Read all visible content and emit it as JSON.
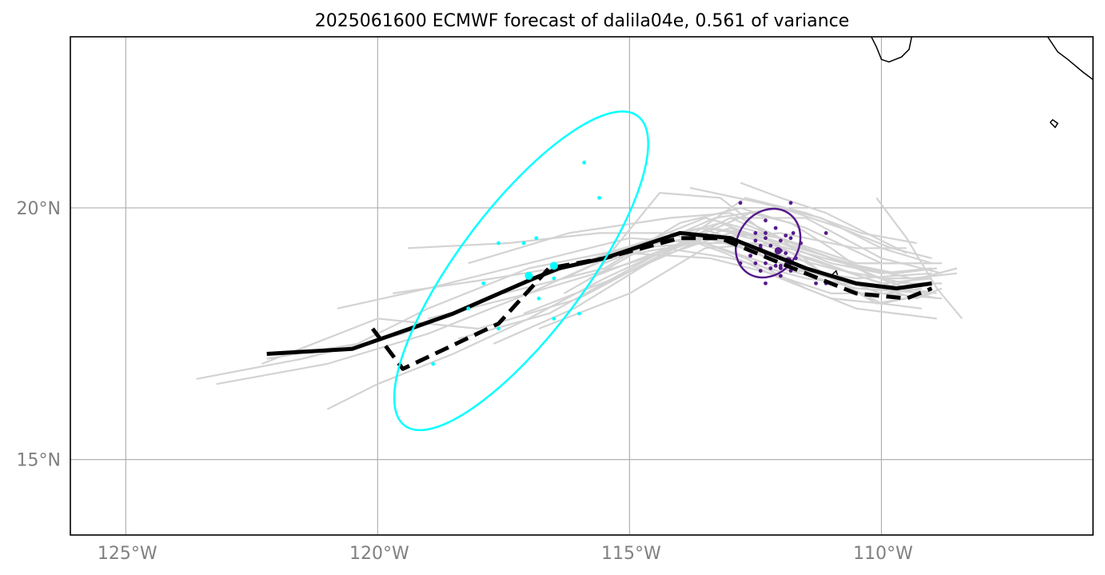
{
  "chart_data": {
    "type": "line",
    "title": "2025061600 ECMWF forecast of dalila04e, 0.561 of variance",
    "xlim": [
      -126.1,
      -105.8
    ],
    "ylim": [
      13.5,
      23.4
    ],
    "x_ticks": [
      {
        "value": -125,
        "label": "125°W"
      },
      {
        "value": -120,
        "label": "120°W"
      },
      {
        "value": -115,
        "label": "115°W"
      },
      {
        "value": -110,
        "label": "110°W"
      }
    ],
    "y_ticks": [
      {
        "value": 20,
        "label": "20°N"
      },
      {
        "value": 15,
        "label": "15°N"
      }
    ],
    "grid": true,
    "colors": {
      "ensemble": "#d3d3d3",
      "forecast": "#000000",
      "late_points": "#00ffff",
      "early_points": "#551a8b",
      "coast": "#000000",
      "grid": "#b0b0b0"
    },
    "coastlines": [
      [
        [
          -110.2,
          23.4
        ],
        [
          -110.1,
          23.2
        ],
        [
          -110.0,
          22.95
        ],
        [
          -109.85,
          22.9
        ],
        [
          -109.6,
          23.0
        ],
        [
          -109.45,
          23.15
        ],
        [
          -109.4,
          23.4
        ]
      ],
      [
        [
          -106.7,
          23.4
        ],
        [
          -106.5,
          23.1
        ],
        [
          -106.3,
          22.95
        ],
        [
          -106.0,
          22.7
        ],
        [
          -105.8,
          22.55
        ]
      ],
      [
        [
          -106.65,
          21.7
        ],
        [
          -106.55,
          21.6
        ],
        [
          -106.5,
          21.68
        ],
        [
          -106.6,
          21.75
        ],
        [
          -106.65,
          21.7
        ]
      ],
      [
        [
          -111.0,
          18.65
        ],
        [
          -110.9,
          18.75
        ],
        [
          -110.85,
          18.6
        ],
        [
          -111.0,
          18.65
        ]
      ]
    ],
    "series": [
      {
        "role": "ensemble",
        "x": [
          -122.2,
          -120.4,
          -119.0,
          -117.0,
          -115.5,
          -114.0,
          -113.0,
          -112.0,
          -111.0,
          -110.0,
          -109.0
        ],
        "y": [
          17.0,
          17.3,
          18.0,
          18.8,
          19.1,
          19.5,
          19.3,
          18.9,
          18.6,
          18.4,
          18.5
        ]
      },
      {
        "role": "ensemble",
        "x": [
          -123.6,
          -121.5,
          -119.5,
          -117.8,
          -116.3,
          -115.0,
          -113.5,
          -112.0,
          -110.5,
          -109.0
        ],
        "y": [
          16.6,
          17.0,
          17.5,
          18.2,
          18.8,
          19.2,
          19.3,
          18.8,
          18.4,
          18.3
        ]
      },
      {
        "role": "ensemble",
        "x": [
          -123.2,
          -121.0,
          -119.0,
          -117.0,
          -115.0,
          -113.5,
          -112.0,
          -110.0,
          -108.8
        ],
        "y": [
          16.5,
          16.9,
          17.5,
          18.3,
          18.9,
          19.4,
          19.0,
          18.3,
          18.2
        ]
      },
      {
        "role": "ensemble",
        "x": [
          -121.0,
          -120.0,
          -118.5,
          -117.0,
          -115.5,
          -114.2,
          -113.0,
          -111.5,
          -110.0,
          -109.0
        ],
        "y": [
          16.0,
          16.5,
          17.1,
          17.8,
          18.6,
          19.2,
          19.6,
          19.0,
          18.5,
          18.6
        ]
      },
      {
        "role": "ensemble",
        "x": [
          -122.3,
          -120.0,
          -118.0,
          -116.0,
          -114.5,
          -113.0,
          -111.5,
          -110.0,
          -109.0
        ],
        "y": [
          16.9,
          17.8,
          17.6,
          18.2,
          19.0,
          19.5,
          19.1,
          18.7,
          18.8
        ]
      },
      {
        "role": "ensemble",
        "x": [
          -120.8,
          -119.0,
          -117.0,
          -115.0,
          -113.5,
          -112.0,
          -110.5,
          -109.0
        ],
        "y": [
          18.0,
          18.4,
          18.9,
          19.4,
          19.3,
          18.8,
          18.6,
          18.7
        ]
      },
      {
        "role": "ensemble",
        "x": [
          -119.7,
          -117.7,
          -115.9,
          -114.3,
          -113.0,
          -111.5,
          -110.0,
          -108.5
        ],
        "y": [
          18.3,
          18.6,
          18.9,
          19.2,
          19.0,
          18.6,
          18.4,
          18.8
        ]
      },
      {
        "role": "ensemble",
        "x": [
          -119.0,
          -117.0,
          -115.0,
          -113.5,
          -112.0,
          -110.5,
          -109.0
        ],
        "y": [
          17.8,
          18.3,
          19.2,
          19.8,
          19.4,
          18.9,
          18.9
        ]
      },
      {
        "role": "ensemble",
        "x": [
          -118.4,
          -116.6,
          -114.6,
          -113.0,
          -111.5,
          -110.0,
          -108.8
        ],
        "y": [
          17.4,
          17.9,
          19.0,
          19.8,
          19.8,
          19.0,
          18.7
        ]
      },
      {
        "role": "ensemble",
        "x": [
          -119.4,
          -117.4,
          -115.6,
          -113.8,
          -112.5,
          -111.0,
          -109.5,
          -108.8
        ],
        "y": [
          19.2,
          19.3,
          19.5,
          19.5,
          19.2,
          18.8,
          18.5,
          18.5
        ]
      },
      {
        "role": "ensemble",
        "x": [
          -118.2,
          -116.2,
          -114.2,
          -113.0,
          -112.0,
          -110.5,
          -109.0
        ],
        "y": [
          18.9,
          19.5,
          19.8,
          19.9,
          19.4,
          18.9,
          18.9
        ]
      },
      {
        "role": "ensemble",
        "x": [
          -117.5,
          -115.5,
          -114.0,
          -112.8,
          -111.5,
          -110.0,
          -108.8
        ],
        "y": [
          18.3,
          18.8,
          19.7,
          20.0,
          19.6,
          18.9,
          18.9
        ]
      },
      {
        "role": "ensemble",
        "x": [
          -117.1,
          -115.3,
          -113.5,
          -112.0,
          -110.5,
          -109.5
        ],
        "y": [
          17.9,
          18.6,
          19.4,
          19.5,
          19.2,
          19.2
        ]
      },
      {
        "role": "ensemble",
        "x": [
          -116.8,
          -115.0,
          -113.5,
          -112.0,
          -111.0,
          -110.0,
          -109.0
        ],
        "y": [
          17.6,
          18.3,
          19.2,
          19.3,
          18.9,
          18.7,
          18.8
        ]
      },
      {
        "role": "ensemble",
        "x": [
          -116.0,
          -115.3,
          -114.4,
          -113.2,
          -112.3,
          -111.0,
          -110.0,
          -109.0
        ],
        "y": [
          18.2,
          19.2,
          20.3,
          20.2,
          19.5,
          19.0,
          18.6,
          18.6
        ]
      },
      {
        "role": "ensemble",
        "x": [
          -117.7,
          -116.1,
          -114.8,
          -113.4,
          -112.0,
          -111.3,
          -110.1,
          -109.0
        ],
        "y": [
          17.3,
          18.0,
          18.8,
          19.6,
          19.4,
          18.8,
          18.1,
          18.3
        ]
      },
      {
        "role": "ensemble",
        "x": [
          -116.3,
          -114.9,
          -113.3,
          -112.0,
          -110.8,
          -109.8,
          -109.0
        ],
        "y": [
          18.3,
          19.1,
          19.8,
          20.0,
          19.6,
          19.2,
          19.0
        ]
      },
      {
        "role": "ensemble",
        "x": [
          -115.8,
          -114.0,
          -112.7,
          -111.5,
          -110.4,
          -109.3
        ],
        "y": [
          18.6,
          19.3,
          20.2,
          19.9,
          19.5,
          19.3
        ]
      },
      {
        "role": "ensemble",
        "x": [
          -113.8,
          -112.4,
          -111.2,
          -110.0,
          -109.0
        ],
        "y": [
          20.4,
          20.1,
          19.8,
          19.2,
          18.9
        ]
      },
      {
        "role": "ensemble",
        "x": [
          -112.8,
          -112.0,
          -111.1,
          -110.3,
          -109.5
        ],
        "y": [
          20.5,
          20.2,
          19.9,
          19.5,
          19.1
        ]
      },
      {
        "role": "ensemble",
        "x": [
          -110.1,
          -109.5,
          -108.9,
          -108.4
        ],
        "y": [
          20.2,
          19.4,
          18.4,
          17.8
        ]
      },
      {
        "role": "ensemble",
        "x": [
          -116.3,
          -115.0,
          -113.8,
          -112.7,
          -111.5,
          -110.5,
          -109.7,
          -108.9
        ],
        "y": [
          18.6,
          19.2,
          19.4,
          19.0,
          18.4,
          18.0,
          17.9,
          17.8
        ]
      },
      {
        "role": "ensemble",
        "x": [
          -115.5,
          -114.3,
          -113.2,
          -112.1,
          -111.0,
          -110.0,
          -109.2
        ],
        "y": [
          18.9,
          19.4,
          19.7,
          19.3,
          18.6,
          18.1,
          18.0
        ]
      },
      {
        "role": "ensemble",
        "x": [
          -114.5,
          -113.5,
          -112.6,
          -111.8,
          -111.0,
          -110.3,
          -109.5,
          -108.9
        ],
        "y": [
          19.0,
          19.5,
          19.9,
          19.7,
          19.2,
          18.7,
          18.4,
          18.3
        ]
      },
      {
        "role": "ensemble",
        "x": [
          -113.5,
          -112.3,
          -111.3,
          -110.3,
          -109.4,
          -108.5
        ],
        "y": [
          19.6,
          19.4,
          19.1,
          18.8,
          18.6,
          18.7
        ]
      },
      {
        "role": "ensemble",
        "x": [
          -113.8,
          -112.5,
          -111.4,
          -110.3,
          -109.3,
          -108.9
        ],
        "y": [
          19.3,
          19.3,
          19.0,
          18.6,
          18.3,
          18.2
        ]
      },
      {
        "role": "ensemble",
        "x": [
          -113.0,
          -111.8,
          -110.7,
          -109.7,
          -108.9
        ],
        "y": [
          19.8,
          19.3,
          18.9,
          18.7,
          18.8
        ]
      },
      {
        "role": "ensemble",
        "x": [
          -114.2,
          -113.1,
          -112.0,
          -111.0,
          -110.0,
          -109.0
        ],
        "y": [
          19.5,
          19.1,
          18.6,
          18.2,
          18.1,
          18.3
        ]
      },
      {
        "role": "ensemble",
        "x": [
          -115.0,
          -113.4,
          -112.2,
          -111.0,
          -109.9,
          -109.2
        ],
        "y": [
          19.1,
          19.0,
          18.7,
          18.3,
          18.3,
          18.4
        ]
      },
      {
        "role": "ensemble",
        "x": [
          -116.0,
          -114.8,
          -113.6,
          -112.4,
          -111.2,
          -110.0,
          -109.3,
          -108.8
        ],
        "y": [
          18.9,
          19.3,
          19.6,
          19.2,
          18.7,
          18.4,
          18.2,
          18.4
        ]
      },
      {
        "role": "forecast",
        "style": "solid",
        "x": [
          -122.2,
          -120.5,
          -118.5,
          -116.9,
          -116.4,
          -115.5,
          -114.0,
          -113.0,
          -111.5,
          -110.5,
          -109.7,
          -109.0
        ],
        "y": [
          17.1,
          17.2,
          17.9,
          18.6,
          18.8,
          19.0,
          19.5,
          19.4,
          18.8,
          18.5,
          18.4,
          18.5
        ]
      },
      {
        "role": "forecast",
        "style": "dashed",
        "x": [
          -120.1,
          -119.5,
          -117.6,
          -116.6,
          -115.5,
          -114.0,
          -113.2,
          -112.0,
          -111.0,
          -110.5,
          -109.5,
          -109.0
        ],
        "y": [
          17.6,
          16.8,
          17.7,
          18.8,
          19.0,
          19.4,
          19.4,
          18.9,
          18.5,
          18.3,
          18.2,
          18.4
        ]
      }
    ],
    "late_points": {
      "x": [
        -115.9,
        -115.6,
        -117.6,
        -117.1,
        -116.85,
        -117.9,
        -118.2,
        -116.8,
        -116.5,
        -117.6,
        -116.5,
        -116.0,
        -118.9
      ],
      "y": [
        20.9,
        20.2,
        19.3,
        19.3,
        19.4,
        18.5,
        18.0,
        18.2,
        18.6,
        17.6,
        17.8,
        17.9,
        16.9
      ]
    },
    "late_ensemble_mean": {
      "x": -117.0,
      "y": 18.65
    },
    "late_forecast_point": {
      "x": -116.5,
      "y": 18.85
    },
    "late_ellipse": {
      "cx": -117.15,
      "cy": 18.75,
      "rx": 1.25,
      "ry": 3.85,
      "rotate_deg": 37
    },
    "early_points": {
      "x": [
        -112.8,
        -111.8,
        -112.3,
        -112.5,
        -112.3,
        -112.1,
        -111.9,
        -111.75,
        -112.5,
        -112.3,
        -112.0,
        -111.8,
        -111.6,
        -112.4,
        -112.2,
        -112.0,
        -112.6,
        -112.3,
        -112.1,
        -111.9,
        -111.7,
        -112.8,
        -112.5,
        -112.3,
        -112.1,
        -111.8,
        -112.4,
        -112.2,
        -112.0,
        -111.8,
        -112.3,
        -112.0,
        -111.3,
        -111.1,
        -111.1,
        -112.4,
        -112.0,
        -112.6
      ],
      "y": [
        20.1,
        20.1,
        19.75,
        19.5,
        19.5,
        19.6,
        19.45,
        19.5,
        19.35,
        19.4,
        19.35,
        19.4,
        19.3,
        19.2,
        19.25,
        19.15,
        19.05,
        19.1,
        19.05,
        19.1,
        19.0,
        18.9,
        18.9,
        18.9,
        18.85,
        18.9,
        18.75,
        18.8,
        18.8,
        18.75,
        18.5,
        18.65,
        18.5,
        18.5,
        19.5,
        19.25,
        18.85,
        19.05
      ]
    },
    "early_ensemble_mean": {
      "x": -112.05,
      "y": 19.15
    },
    "early_forecast_point": {
      "x": -111.85,
      "y": 18.95
    },
    "early_ellipse": {
      "cx": -112.25,
      "cy": 19.3,
      "rx": 0.6,
      "ry": 0.72,
      "rotate_deg": 35
    }
  }
}
